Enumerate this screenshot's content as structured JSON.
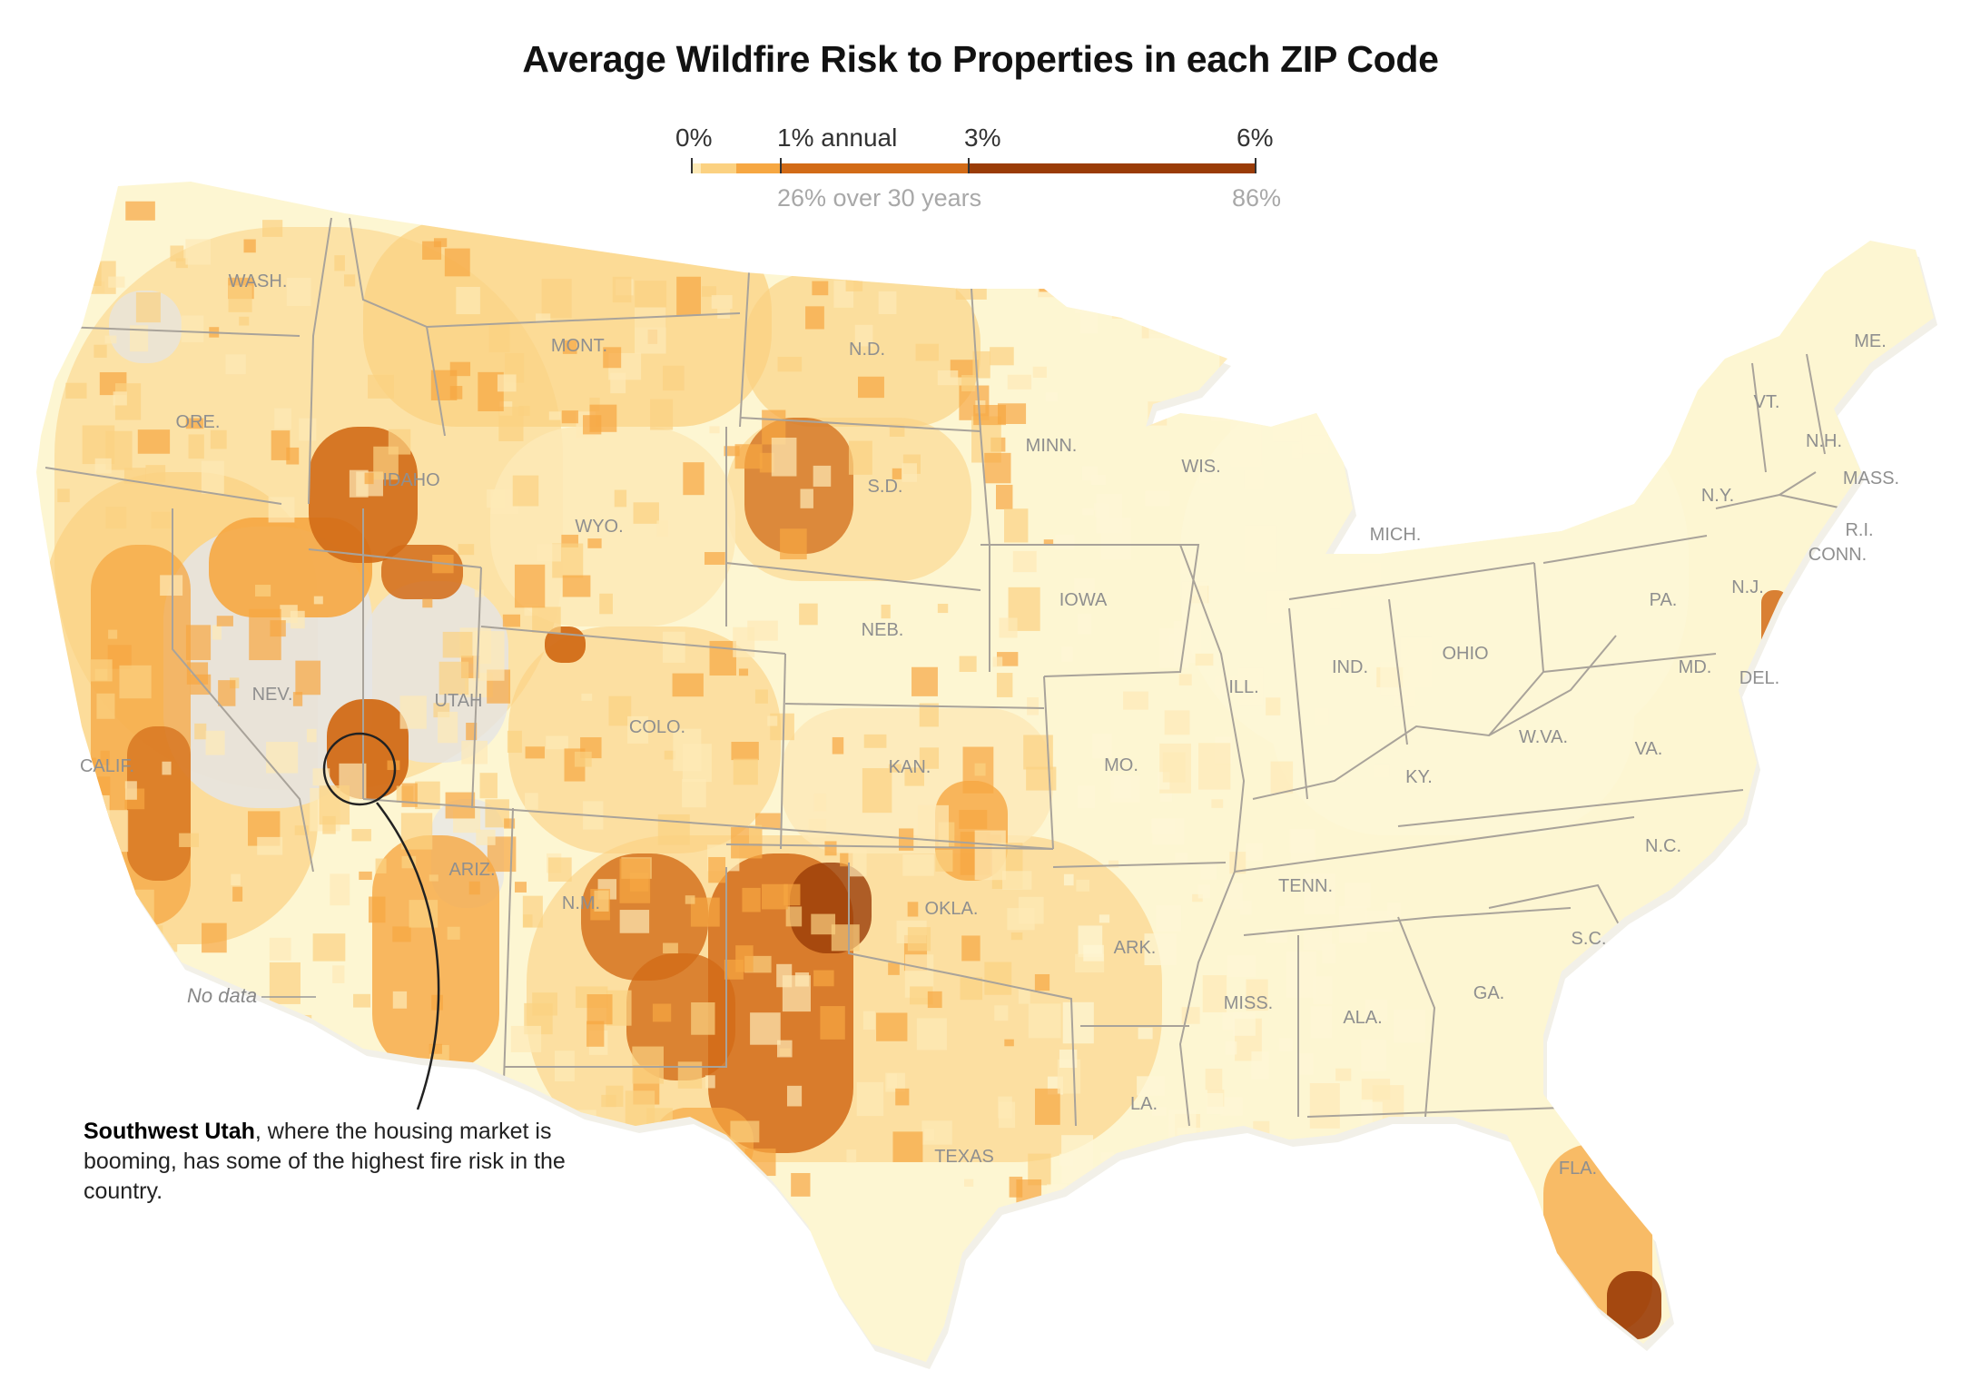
{
  "title": "Average Wildfire Risk to Properties in each ZIP Code",
  "legend": {
    "top_labels": [
      "0%",
      "1% annual",
      "3%",
      "6%"
    ],
    "bottom_labels": [
      "26% over 30 years",
      "86%"
    ],
    "steps": [
      {
        "color": "#fde9b6",
        "from": 0,
        "to": 0.1
      },
      {
        "color": "#fbd181",
        "from": 0.1,
        "to": 0.5
      },
      {
        "color": "#f6a742",
        "from": 0.5,
        "to": 1
      },
      {
        "color": "#d26b17",
        "from": 1,
        "to": 3
      },
      {
        "color": "#9a3c07",
        "from": 3,
        "to": 6
      }
    ]
  },
  "colors": {
    "no_data": "#e5e5e5",
    "lowest": "#fdf7d6",
    "low": "#fde9b6",
    "medium": "#fbd181",
    "high": "#f6a742",
    "higher": "#d26b17",
    "highest": "#9a3c07"
  },
  "state_labels": [
    "WASH.",
    "ORE.",
    "CALIF.",
    "NEV.",
    "IDAHO",
    "MONT.",
    "WYO.",
    "UTAH",
    "ARIZ.",
    "COLO.",
    "N.M.",
    "N.D.",
    "S.D.",
    "NEB.",
    "KAN.",
    "OKLA.",
    "TEXAS",
    "MINN.",
    "IOWA",
    "MO.",
    "ARK.",
    "LA.",
    "WIS.",
    "ILL.",
    "MICH.",
    "IND.",
    "OHIO",
    "KY.",
    "TENN.",
    "MISS.",
    "ALA.",
    "GA.",
    "FLA.",
    "S.C.",
    "N.C.",
    "VA.",
    "W.VA.",
    "PA.",
    "N.Y.",
    "MD.",
    "DEL.",
    "N.J.",
    "CONN.",
    "R.I.",
    "MASS.",
    "VT.",
    "N.H.",
    "ME."
  ],
  "no_data_label": "No data",
  "annotation": {
    "bold": "Southwest Utah",
    "text": ", where the housing market is booming, has some of the highest fire risk in the country."
  }
}
